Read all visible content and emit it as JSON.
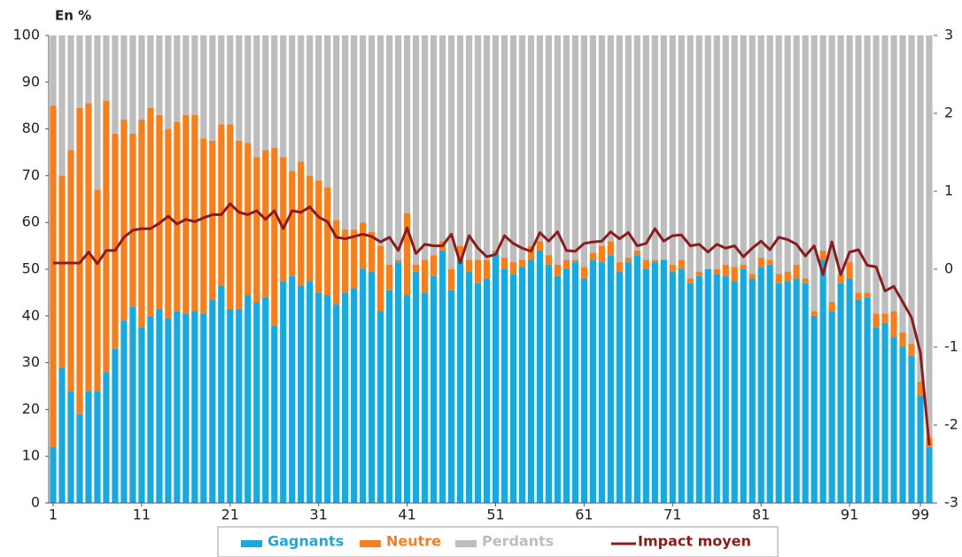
{
  "chart_data": {
    "type": "bar",
    "stacked": true,
    "y_label": "En %",
    "categories": [
      "1",
      null,
      null,
      null,
      null,
      null,
      null,
      null,
      null,
      null,
      "11",
      null,
      null,
      null,
      null,
      null,
      null,
      null,
      null,
      null,
      "21",
      null,
      null,
      null,
      null,
      null,
      null,
      null,
      null,
      null,
      "31",
      null,
      null,
      null,
      null,
      null,
      null,
      null,
      null,
      null,
      "41",
      null,
      null,
      null,
      null,
      null,
      null,
      null,
      null,
      null,
      "51",
      null,
      null,
      null,
      null,
      null,
      null,
      null,
      null,
      null,
      "61",
      null,
      null,
      null,
      null,
      null,
      null,
      null,
      null,
      null,
      "71",
      null,
      null,
      null,
      null,
      null,
      null,
      null,
      null,
      null,
      "81",
      null,
      null,
      null,
      null,
      null,
      null,
      null,
      null,
      null,
      "91",
      null,
      null,
      null,
      null,
      null,
      null,
      null,
      "99",
      null
    ],
    "series": [
      {
        "name": "Gagnants",
        "color": "#1ba8dd",
        "values": [
          12,
          29,
          24,
          19,
          24,
          24,
          28,
          33,
          39,
          42,
          37.5,
          40,
          41.5,
          39.5,
          41,
          40.5,
          41,
          40.5,
          43.5,
          46.5,
          41.5,
          41.5,
          44.5,
          43,
          44,
          38,
          47.5,
          48.5,
          46.5,
          47.5,
          45,
          44.5,
          42.5,
          45,
          46,
          50,
          49.5,
          41,
          45.5,
          51.5,
          44.5,
          49.5,
          45,
          48.5,
          54,
          45.5,
          52,
          49.5,
          47,
          48,
          53.5,
          50,
          49,
          50.5,
          52,
          54,
          51,
          48.5,
          50,
          51.5,
          48,
          52,
          51.5,
          53,
          49.5,
          51.5,
          53,
          50,
          51.5,
          52,
          49.5,
          50,
          47,
          48.5,
          50,
          49,
          48.5,
          47.5,
          50,
          48,
          50.5,
          51,
          47,
          47.5,
          48,
          47,
          40,
          52,
          41,
          47,
          48,
          43.5,
          44,
          37.5,
          38.5,
          35.5,
          33.5,
          31.5,
          23,
          12
        ]
      },
      {
        "name": "Neutre",
        "color": "#f47f20",
        "values": [
          73,
          41,
          51.5,
          65.5,
          61.5,
          43,
          58,
          46,
          43,
          37,
          44.5,
          44.5,
          41.5,
          40.5,
          40.5,
          42.5,
          42,
          37.5,
          34,
          34.5,
          39.5,
          36,
          32.5,
          31,
          31.5,
          38,
          26.5,
          22.5,
          26.5,
          22.5,
          24,
          23,
          18,
          13.5,
          12.5,
          10,
          8.5,
          14,
          5.5,
          0.5,
          17.5,
          1.5,
          7,
          4.5,
          2,
          4.5,
          3,
          2.5,
          5,
          4,
          0.5,
          2.5,
          2.5,
          1.5,
          3,
          2,
          2,
          2.5,
          2,
          0.5,
          2.5,
          1.5,
          3.5,
          3,
          2,
          1,
          1,
          2,
          0.5,
          0,
          1.5,
          2,
          1,
          1,
          0,
          1,
          2.5,
          3,
          1,
          1,
          2,
          1,
          2,
          2,
          3,
          1,
          1,
          2,
          2,
          2,
          3.5,
          1.5,
          1,
          3,
          2,
          5.5,
          3,
          2.5,
          3,
          2
        ]
      },
      {
        "name": "Perdants",
        "color": "#bdbdbd",
        "values": [
          15,
          30,
          24.5,
          15.5,
          14.5,
          33,
          14,
          21,
          18,
          21,
          18,
          15.5,
          17,
          20,
          18.5,
          17,
          17,
          22,
          22.5,
          19,
          19,
          22.5,
          23,
          26,
          24.5,
          24,
          26,
          29,
          27,
          30,
          31,
          32.5,
          39.5,
          41.5,
          41.5,
          40,
          42,
          45,
          49,
          48,
          38,
          49,
          48,
          47,
          44,
          50,
          45,
          48,
          48,
          48,
          46,
          47.5,
          48.5,
          48,
          45,
          44,
          47,
          49,
          48,
          48,
          49.5,
          46.5,
          45,
          44,
          48.5,
          47.5,
          46,
          48,
          48,
          48,
          49,
          48,
          52,
          50.5,
          50,
          50,
          49,
          49.5,
          49,
          51,
          47.5,
          48,
          51,
          50.5,
          49,
          52,
          59,
          46,
          57,
          51,
          48.5,
          55,
          55,
          59.5,
          59.5,
          59,
          63.5,
          66,
          74,
          86
        ]
      },
      {
        "name": "Impact moyen",
        "color": "#8c1c1c",
        "type": "line",
        "axis": "y2",
        "values": [
          0.08,
          0.08,
          0.08,
          0.08,
          0.22,
          0.07,
          0.24,
          0.24,
          0.41,
          0.5,
          0.52,
          0.52,
          0.59,
          0.68,
          0.58,
          0.64,
          0.61,
          0.66,
          0.7,
          0.7,
          0.84,
          0.73,
          0.7,
          0.75,
          0.64,
          0.75,
          0.52,
          0.75,
          0.73,
          0.8,
          0.67,
          0.61,
          0.41,
          0.39,
          0.42,
          0.45,
          0.42,
          0.35,
          0.41,
          0.24,
          0.53,
          0.2,
          0.32,
          0.3,
          0.3,
          0.45,
          0.08,
          0.43,
          0.27,
          0.16,
          0.19,
          0.43,
          0.33,
          0.27,
          0.23,
          0.47,
          0.36,
          0.48,
          0.24,
          0.23,
          0.33,
          0.35,
          0.36,
          0.48,
          0.39,
          0.47,
          0.3,
          0.33,
          0.52,
          0.36,
          0.43,
          0.44,
          0.3,
          0.32,
          0.22,
          0.32,
          0.27,
          0.3,
          0.16,
          0.27,
          0.36,
          0.25,
          0.41,
          0.38,
          0.32,
          0.17,
          0.3,
          -0.07,
          0.35,
          -0.07,
          0.22,
          0.25,
          0.05,
          0.03,
          -0.28,
          -0.22,
          -0.42,
          -0.62,
          -1.07,
          -2.26
        ]
      }
    ],
    "ylim": [
      0,
      100
    ],
    "yticks": [
      0,
      10,
      20,
      30,
      40,
      50,
      60,
      70,
      80,
      90,
      100
    ],
    "y2lim": [
      -3,
      3
    ],
    "y2ticks": [
      -3,
      -2,
      -1,
      0,
      1,
      2,
      3
    ],
    "legend": "bottom"
  }
}
